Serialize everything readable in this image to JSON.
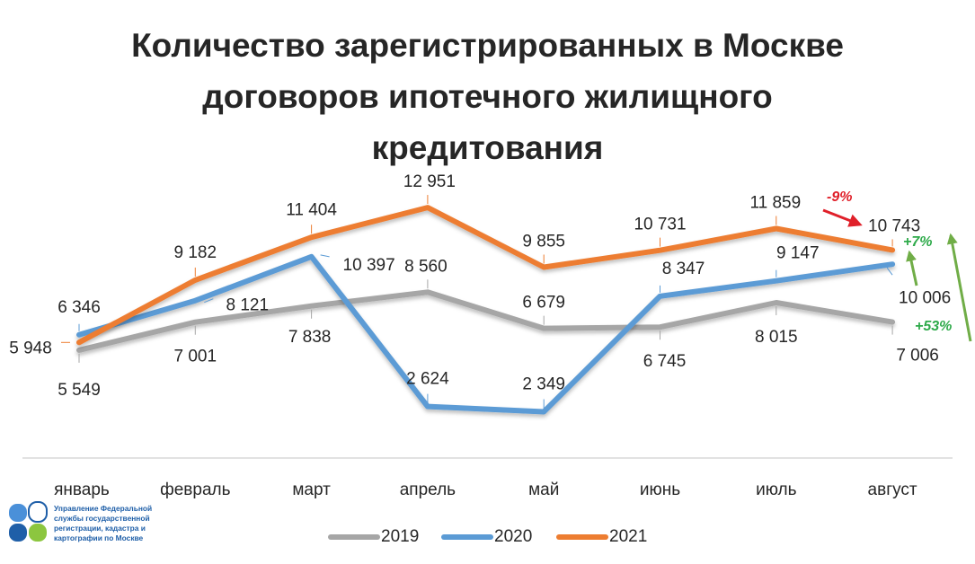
{
  "chart_data": {
    "type": "line",
    "title_lines": [
      "Количество зарегистрированных в Москве",
      "договоров ипотечного жилищного",
      "кредитования"
    ],
    "categories": [
      "январь",
      "февраль",
      "март",
      "апрель",
      "май",
      "июнь",
      "июль",
      "август"
    ],
    "series": [
      {
        "name": "2019",
        "color": "#a6a6a6",
        "values": [
          5549,
          7001,
          7838,
          8560,
          6679,
          6745,
          8015,
          7006
        ],
        "labels": [
          "5 549",
          "7 001",
          "7 838",
          "8 560",
          "6 679",
          "6 745",
          "8 015",
          "7 006"
        ]
      },
      {
        "name": "2020",
        "color": "#5b9bd5",
        "values": [
          6346,
          8121,
          10397,
          2624,
          2349,
          8347,
          9147,
          10006
        ],
        "labels": [
          "6 346",
          "8 121",
          "10 397",
          "2 624",
          "2 349",
          "8 347",
          "9 147",
          "10 006"
        ]
      },
      {
        "name": "2021",
        "color": "#ed7d31",
        "values": [
          5948,
          9182,
          11404,
          12951,
          9855,
          10731,
          11859,
          10743
        ],
        "labels": [
          "5 948",
          "9 182",
          "11 404",
          "12 951",
          "9 855",
          "10 731",
          "11 859",
          "10 743"
        ]
      }
    ],
    "legend": {
      "position": "bottom",
      "entries": [
        "2019",
        "2020",
        "2021"
      ]
    },
    "grid": false,
    "annotations": [
      {
        "text": "-9%",
        "color": "#e0202a"
      },
      {
        "text": "+7%",
        "color": "#2eaa4a"
      },
      {
        "text": "+53%",
        "color": "#2eaa4a"
      }
    ],
    "arrow_color": "#70ad47"
  },
  "logo": {
    "text_lines": [
      "Управление Федеральной",
      "службы государственной",
      "регистрации, кадастра и",
      "картографии по Москве"
    ],
    "colors": [
      "#4a90d9",
      "#8cc63f",
      "#1f5fa8"
    ]
  }
}
